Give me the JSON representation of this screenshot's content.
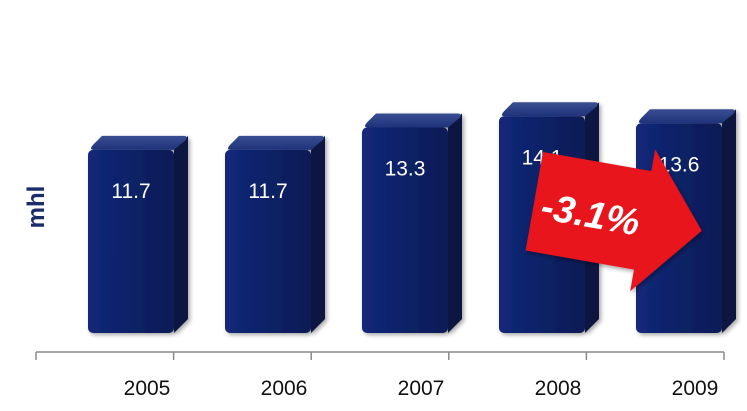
{
  "chart_data": {
    "type": "bar",
    "categories": [
      "2005",
      "2006",
      "2007",
      "2008",
      "2009"
    ],
    "values": [
      11.7,
      11.7,
      13.3,
      14.1,
      13.6
    ],
    "value_labels": [
      "11.7",
      "11.7",
      "13.3",
      "14.1",
      "13.6"
    ],
    "title": "",
    "xlabel": "",
    "ylabel": "mhl",
    "grid": false,
    "annotation": {
      "text": "-3.1%",
      "color": "#e8141b",
      "style": "arrow"
    },
    "colors": {
      "bar_front": "#0d2266",
      "bar_top": "#2a3d82",
      "bar_side": "#071541",
      "axis": "#8a8a8a",
      "ylabel": "#1b2c6b"
    }
  }
}
